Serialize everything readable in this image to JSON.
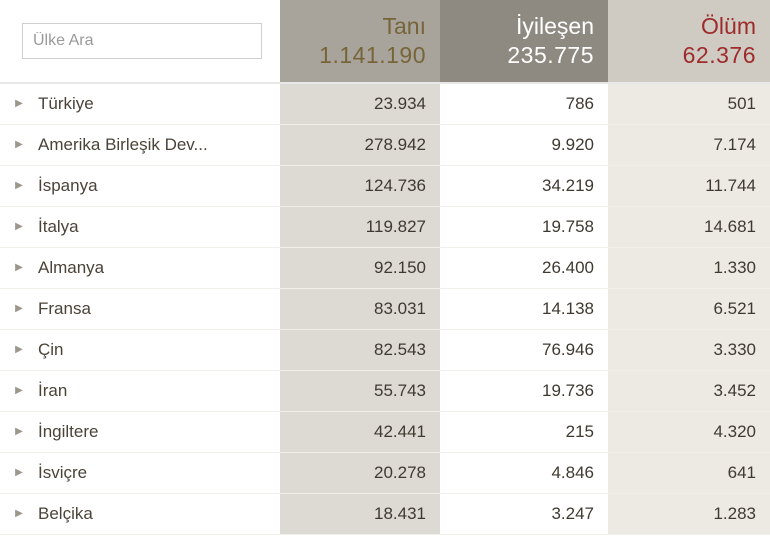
{
  "search": {
    "placeholder": "Ülke Ara"
  },
  "header": {
    "cases": {
      "label": "Tanı",
      "total": "1.141.190"
    },
    "recov": {
      "label": "İyileşen",
      "total": "235.775"
    },
    "deaths": {
      "label": "Ölüm",
      "total": "62.376"
    }
  },
  "colors": {
    "cases_header_bg": "#a8a49b",
    "cases_header_fg": "#77653a",
    "recov_header_bg": "#8e8a82",
    "recov_header_fg": "#ffffff",
    "deaths_header_bg": "#cfcbc3",
    "deaths_header_fg": "#9e2b2b",
    "cases_col_bg": "#dddad3",
    "recov_col_bg": "#ffffff",
    "deaths_col_bg": "#edeae3",
    "row_border": "#f1efea",
    "text": "#3f3a31"
  },
  "rows": [
    {
      "country": "Türkiye",
      "cases": "23.934",
      "recov": "786",
      "deaths": "501"
    },
    {
      "country": "Amerika Birleşik Dev...",
      "cases": "278.942",
      "recov": "9.920",
      "deaths": "7.174"
    },
    {
      "country": "İspanya",
      "cases": "124.736",
      "recov": "34.219",
      "deaths": "11.744"
    },
    {
      "country": "İtalya",
      "cases": "119.827",
      "recov": "19.758",
      "deaths": "14.681"
    },
    {
      "country": "Almanya",
      "cases": "92.150",
      "recov": "26.400",
      "deaths": "1.330"
    },
    {
      "country": "Fransa",
      "cases": "83.031",
      "recov": "14.138",
      "deaths": "6.521"
    },
    {
      "country": "Çin",
      "cases": "82.543",
      "recov": "76.946",
      "deaths": "3.330"
    },
    {
      "country": "İran",
      "cases": "55.743",
      "recov": "19.736",
      "deaths": "3.452"
    },
    {
      "country": "İngiltere",
      "cases": "42.441",
      "recov": "215",
      "deaths": "4.320"
    },
    {
      "country": "İsviçre",
      "cases": "20.278",
      "recov": "4.846",
      "deaths": "641"
    },
    {
      "country": "Belçika",
      "cases": "18.431",
      "recov": "3.247",
      "deaths": "1.283"
    }
  ]
}
